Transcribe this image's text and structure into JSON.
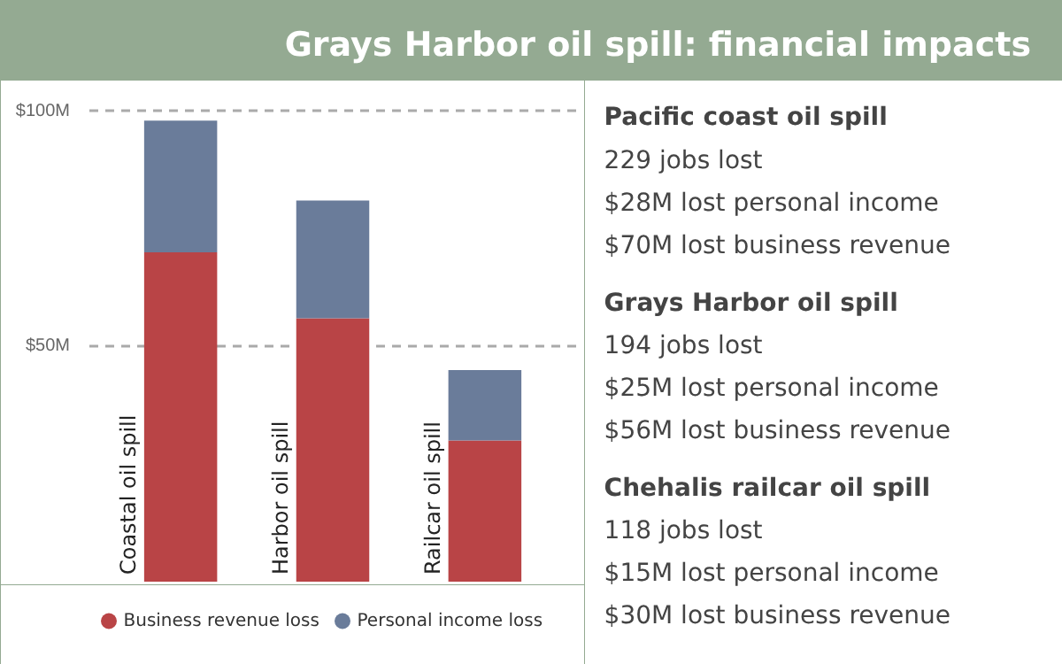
{
  "chart_data": [
    {
      "type": "bar",
      "title": "Grays Harbor oil spill: financial impacts",
      "stacked": true,
      "categories": [
        "Coastal oil spill",
        "Harbor oil spill",
        "Railcar oil spill"
      ],
      "series": [
        {
          "name": "Business revenue loss",
          "color": "#b94446",
          "values": [
            70,
            56,
            30
          ]
        },
        {
          "name": "Personal income loss",
          "color": "#6a7c9a",
          "values": [
            28,
            25,
            15
          ]
        }
      ],
      "ylim": [
        0,
        102
      ],
      "yticks": [
        {
          "value": 50,
          "label": "$50M"
        },
        {
          "value": 100,
          "label": "$100M"
        }
      ],
      "grid": "y",
      "legend": "bottom"
    },
    {
      "type": "other",
      "annotations": [
        "Pacific coast oil spill",
        "229 jobs lost",
        "$28M lost personal income",
        "$70M lost business revenue",
        "Grays Harbor oil spill",
        "194 jobs lost",
        "$25M lost personal income",
        "$56M lost business revenue",
        "Chehalis railcar oil spill",
        "118 jobs lost",
        "$15M lost personal income",
        "$30M lost business revenue"
      ]
    }
  ]
}
